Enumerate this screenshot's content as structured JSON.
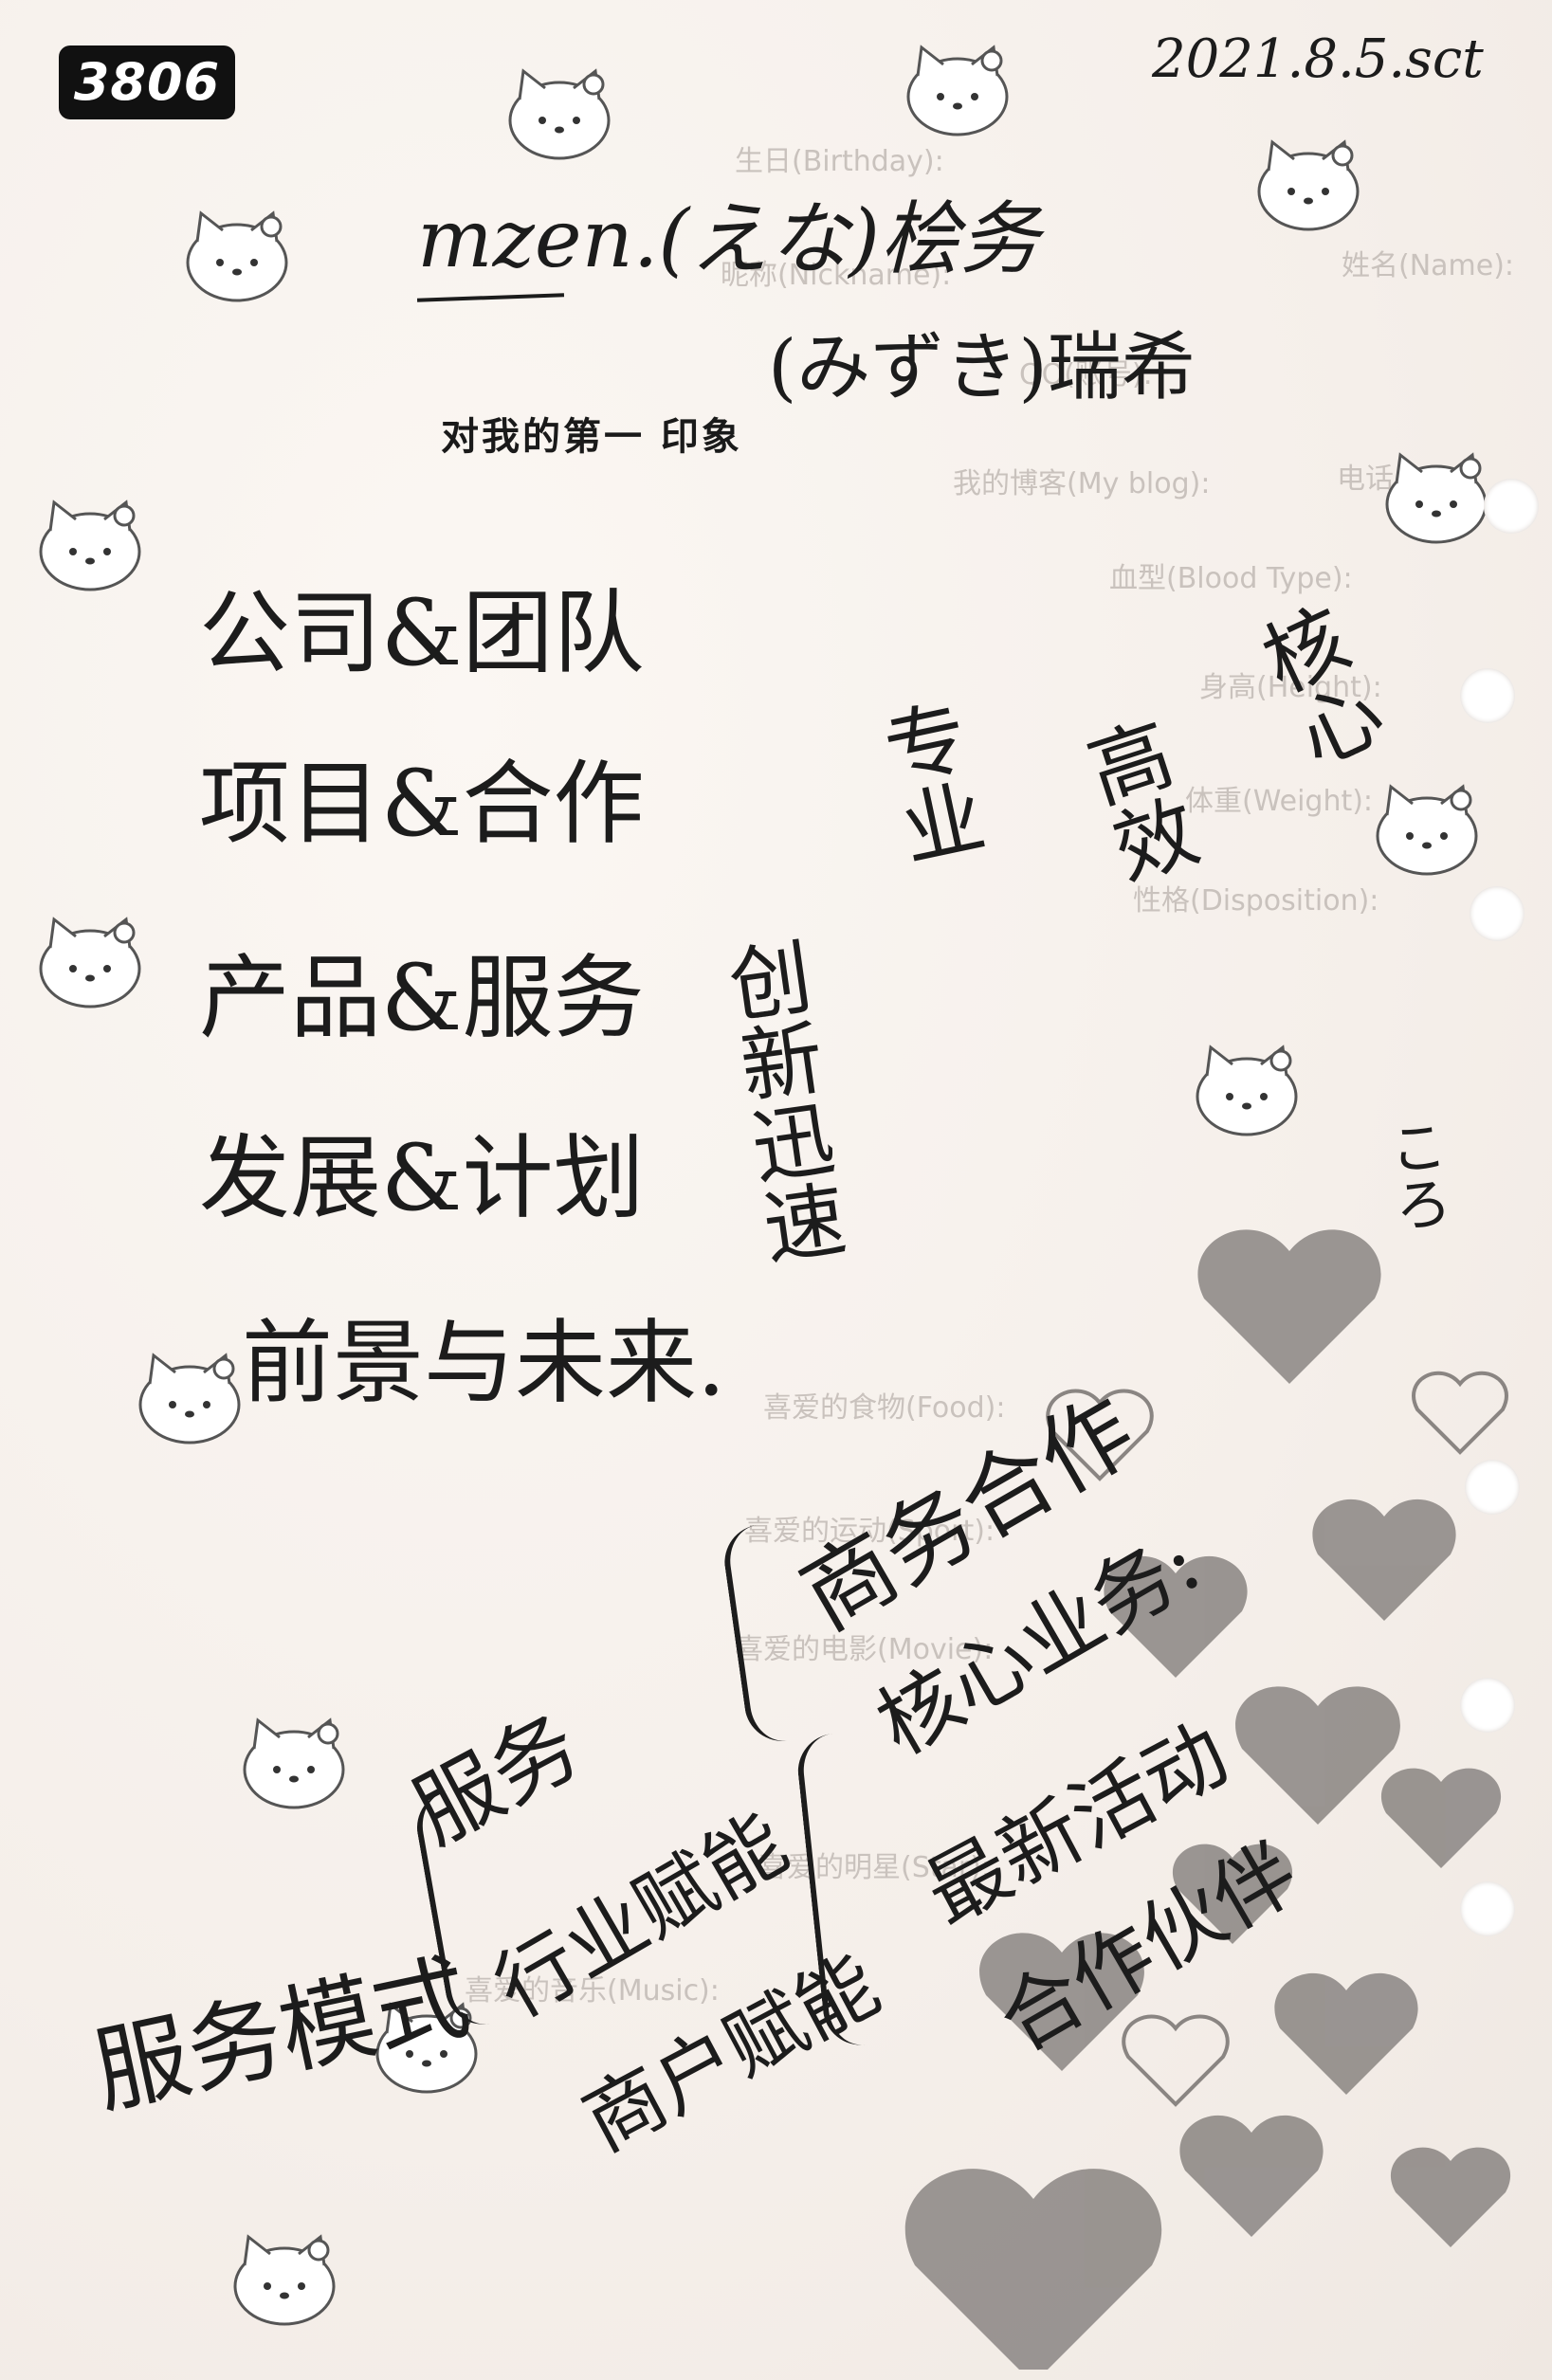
{
  "badge": "3806",
  "date": "2021.8.5.sct",
  "name_line1": "mzen.(えな)桧务",
  "name_line2": "(みずき)瑞希",
  "printed_title": "对我的第一 印象",
  "topics": [
    "公司&团队",
    "项目&合作",
    "产品&服务",
    "发展&计划",
    "前景与未来."
  ],
  "vertical_notes": [
    "创新迅速",
    "专业",
    "高效",
    "核心",
    "ころ"
  ],
  "bottom_right": [
    "商务合作",
    "核心业务:",
    "最新活动",
    "合作伙伴"
  ],
  "bottom_left": [
    "服务",
    "行业赋能",
    "商户赋能",
    "服务模式"
  ],
  "faint_print": [
    "生日(Birthday):",
    "姓名(Name):",
    "昵称(Nickname):",
    "QQ(账号):",
    "电话(Tel):",
    "我的博客(My blog):",
    "血型(Blood Type):",
    "身高(Height):",
    "体重(Weight):",
    "性格(Disposition):",
    "喜爱的食物(Food):",
    "喜爱的运动(Sport):",
    "喜爱的电影(Movie):",
    "喜爱的明星(Star):",
    "喜爱的音乐(Music):"
  ],
  "colors": {
    "paper": "#f7f2ee",
    "ink": "#1c1c1c",
    "faint": "#c9c2bd",
    "heart": "#8a8582"
  }
}
